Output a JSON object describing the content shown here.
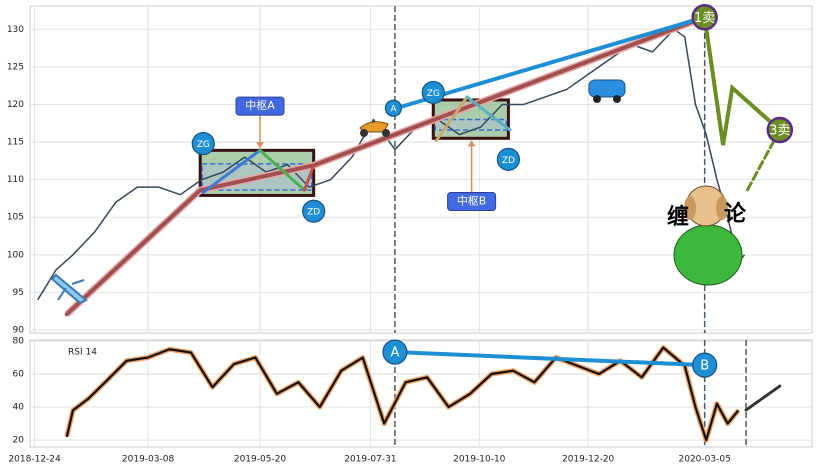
{
  "chart_data": [
    {
      "type": "line",
      "xlim": [
        "2018-12-21",
        "2020-05-14"
      ],
      "xticks": [
        "2018-12-24",
        "2019-03-08",
        "2019-05-20",
        "2019-07-31",
        "2019-10-10",
        "2019-12-20",
        "2020-03-05"
      ],
      "ylim": [
        89.6,
        133.1
      ],
      "yticks": [
        90,
        95,
        100,
        105,
        110,
        115,
        120,
        125,
        130
      ],
      "grid": true,
      "x": [
        "2018-12-26",
        "2019-01-07",
        "2019-01-18",
        "2019-02-01",
        "2019-02-15",
        "2019-03-01",
        "2019-03-15",
        "2019-03-29",
        "2019-04-12",
        "2019-04-26",
        "2019-05-10",
        "2019-05-24",
        "2019-06-07",
        "2019-06-21",
        "2019-07-05",
        "2019-07-19",
        "2019-08-02",
        "2019-08-16",
        "2019-08-30",
        "2019-09-13",
        "2019-09-27",
        "2019-10-11",
        "2019-10-25",
        "2019-11-08",
        "2019-11-22",
        "2019-12-06",
        "2019-12-20",
        "2020-01-03",
        "2020-01-17",
        "2020-01-31",
        "2020-02-14",
        "2020-02-21",
        "2020-02-28",
        "2020-03-06",
        "2020-03-13",
        "2020-03-20",
        "2020-03-27",
        "2020-03-31"
      ],
      "series": [
        {
          "color": "#34475c",
          "values": [
            94,
            98,
            100,
            103,
            107,
            109,
            109,
            108,
            110,
            111,
            113,
            111,
            112,
            109,
            110,
            113,
            118,
            114,
            117,
            118,
            116,
            117,
            120,
            120,
            121,
            122,
            124,
            126,
            128,
            127,
            130,
            129,
            120,
            116,
            110,
            105,
            99,
            100
          ]
        }
      ],
      "overlays": [
        {
          "color": "#a0504f",
          "style": "bold",
          "x": [
            "2019-01-14",
            "2019-04-11",
            "2019-06-24",
            "2020-03-05"
          ],
          "values": [
            92.1,
            108.6,
            111.9,
            131.6
          ]
        },
        {
          "color": "#1e8fd5",
          "style": "bold",
          "x": [
            "2019-08-15",
            "2020-03-05"
          ],
          "values": [
            119.4,
            131.6
          ]
        },
        {
          "color": "#6b8e23",
          "style": "bold",
          "x": [
            "2020-03-05",
            "2020-03-17",
            "2020-03-23",
            "2020-04-23"
          ],
          "values": [
            131.6,
            114.6,
            122.2,
            116.6
          ]
        },
        {
          "color": "#6b8e23",
          "style": "dashed",
          "x": [
            "2020-04-23",
            "2020-04-01"
          ],
          "values": [
            116.6,
            108.3
          ]
        },
        {
          "color": "#3a7bd5",
          "style": "medium",
          "x": [
            "2019-04-13",
            "2019-05-20"
          ],
          "values": [
            108.3,
            113.9
          ]
        },
        {
          "color": "#4caf50",
          "style": "medium",
          "x": [
            "2019-05-20",
            "2019-06-18"
          ],
          "values": [
            113.9,
            108.6
          ]
        },
        {
          "color": "#c0504d",
          "style": "medium",
          "x": [
            "2019-06-18",
            "2019-06-24"
          ],
          "values": [
            108.6,
            111.9
          ]
        },
        {
          "color": "#c8a86a",
          "style": "medium",
          "x": [
            "2019-09-12",
            "2019-10-02"
          ],
          "values": [
            115.2,
            121.0
          ]
        },
        {
          "color": "#5bb0c0",
          "style": "medium",
          "x": [
            "2019-10-02",
            "2019-10-30"
          ],
          "values": [
            121.0,
            116.6
          ]
        }
      ],
      "zhongshu": [
        {
          "start": "2019-04-11",
          "end": "2019-06-24",
          "high": 113.9,
          "low": 107.9,
          "zg": 112.1,
          "zd": 108.6
        },
        {
          "start": "2019-09-10",
          "end": "2019-10-29",
          "high": 120.6,
          "low": 115.5,
          "zg": 118.0,
          "zd": 116.6
        }
      ],
      "vlines": [
        "2019-08-16",
        "2020-03-05"
      ],
      "annotations": [
        {
          "text": "ZG",
          "kind": "circle",
          "color": "#1e8fd5",
          "x": "2019-04-13",
          "value": 114.8
        },
        {
          "text": "ZD",
          "kind": "circle",
          "color": "#1e8fd5",
          "x": "2019-06-24",
          "value": 105.8
        },
        {
          "text": "中枢A",
          "kind": "callout-above",
          "color": "#4169e1",
          "x": "2019-05-20",
          "value": 114.2
        },
        {
          "text": "A",
          "kind": "circle-small",
          "color": "#1e8fd5",
          "x": "2019-08-15",
          "value": 119.5
        },
        {
          "text": "ZG",
          "kind": "circle",
          "color": "#1e8fd5",
          "x": "2019-09-10",
          "value": 121.6
        },
        {
          "text": "ZD",
          "kind": "circle",
          "color": "#1e8fd5",
          "x": "2019-10-29",
          "value": 112.7
        },
        {
          "text": "中枢B",
          "kind": "callout-below",
          "color": "#4169e1",
          "x": "2019-10-05",
          "value": 115.2
        },
        {
          "text": "1卖",
          "kind": "sell",
          "color": "#6b8e23",
          "x": "2020-03-05",
          "value": 131.6
        },
        {
          "text": "3卖",
          "kind": "sell",
          "color": "#6b8e23",
          "x": "2020-04-23",
          "value": 116.6
        }
      ],
      "mascot": [
        "缠",
        "论"
      ]
    },
    {
      "type": "line",
      "title": "RSI 14",
      "xlim": [
        "2018-12-21",
        "2020-05-14"
      ],
      "xticks": [
        "2018-12-24",
        "2019-03-08",
        "2019-05-20",
        "2019-07-31",
        "2019-10-10",
        "2019-12-20",
        "2020-03-05"
      ],
      "ylim": [
        15.8,
        80.6
      ],
      "yticks": [
        20,
        40,
        60,
        80
      ],
      "grid": true,
      "x": [
        "2019-01-14",
        "2019-01-18",
        "2019-01-28",
        "2019-02-08",
        "2019-02-22",
        "2019-03-08",
        "2019-03-22",
        "2019-04-05",
        "2019-04-19",
        "2019-05-03",
        "2019-05-17",
        "2019-05-31",
        "2019-06-14",
        "2019-06-28",
        "2019-07-12",
        "2019-07-26",
        "2019-08-09",
        "2019-08-23",
        "2019-09-06",
        "2019-09-20",
        "2019-10-04",
        "2019-10-18",
        "2019-11-01",
        "2019-11-15",
        "2019-11-29",
        "2019-12-13",
        "2019-12-27",
        "2020-01-10",
        "2020-01-24",
        "2020-02-07",
        "2020-02-21",
        "2020-02-28",
        "2020-03-06",
        "2020-03-13",
        "2020-03-20",
        "2020-03-27"
      ],
      "series": [
        {
          "color": "#111111",
          "values": [
            22,
            38,
            45,
            55,
            68,
            70,
            75,
            73,
            52,
            66,
            70,
            48,
            55,
            40,
            62,
            70,
            30,
            55,
            58,
            40,
            48,
            60,
            62,
            55,
            70,
            65,
            60,
            68,
            58,
            76,
            65,
            40,
            20,
            42,
            30,
            38
          ]
        }
      ],
      "overlays": [
        {
          "color": "#1e8fd5",
          "style": "bold",
          "x": [
            "2019-08-16",
            "2020-03-05"
          ],
          "values": [
            73.3,
            65.4
          ]
        },
        {
          "color": "#333333",
          "style": "dashed",
          "x": [
            "2020-04-01",
            "2020-04-23"
          ],
          "values": [
            38.2,
            52.7
          ]
        }
      ],
      "vlines": [
        "2019-08-16",
        "2020-03-05",
        "2020-04-01"
      ],
      "annotations": [
        {
          "text": "A",
          "kind": "circle-large",
          "color": "#1e8fd5",
          "x": "2019-08-16",
          "value": 73.3
        },
        {
          "text": "B",
          "kind": "circle-large",
          "color": "#1e8fd5",
          "x": "2020-03-05",
          "value": 65.4
        }
      ]
    }
  ]
}
